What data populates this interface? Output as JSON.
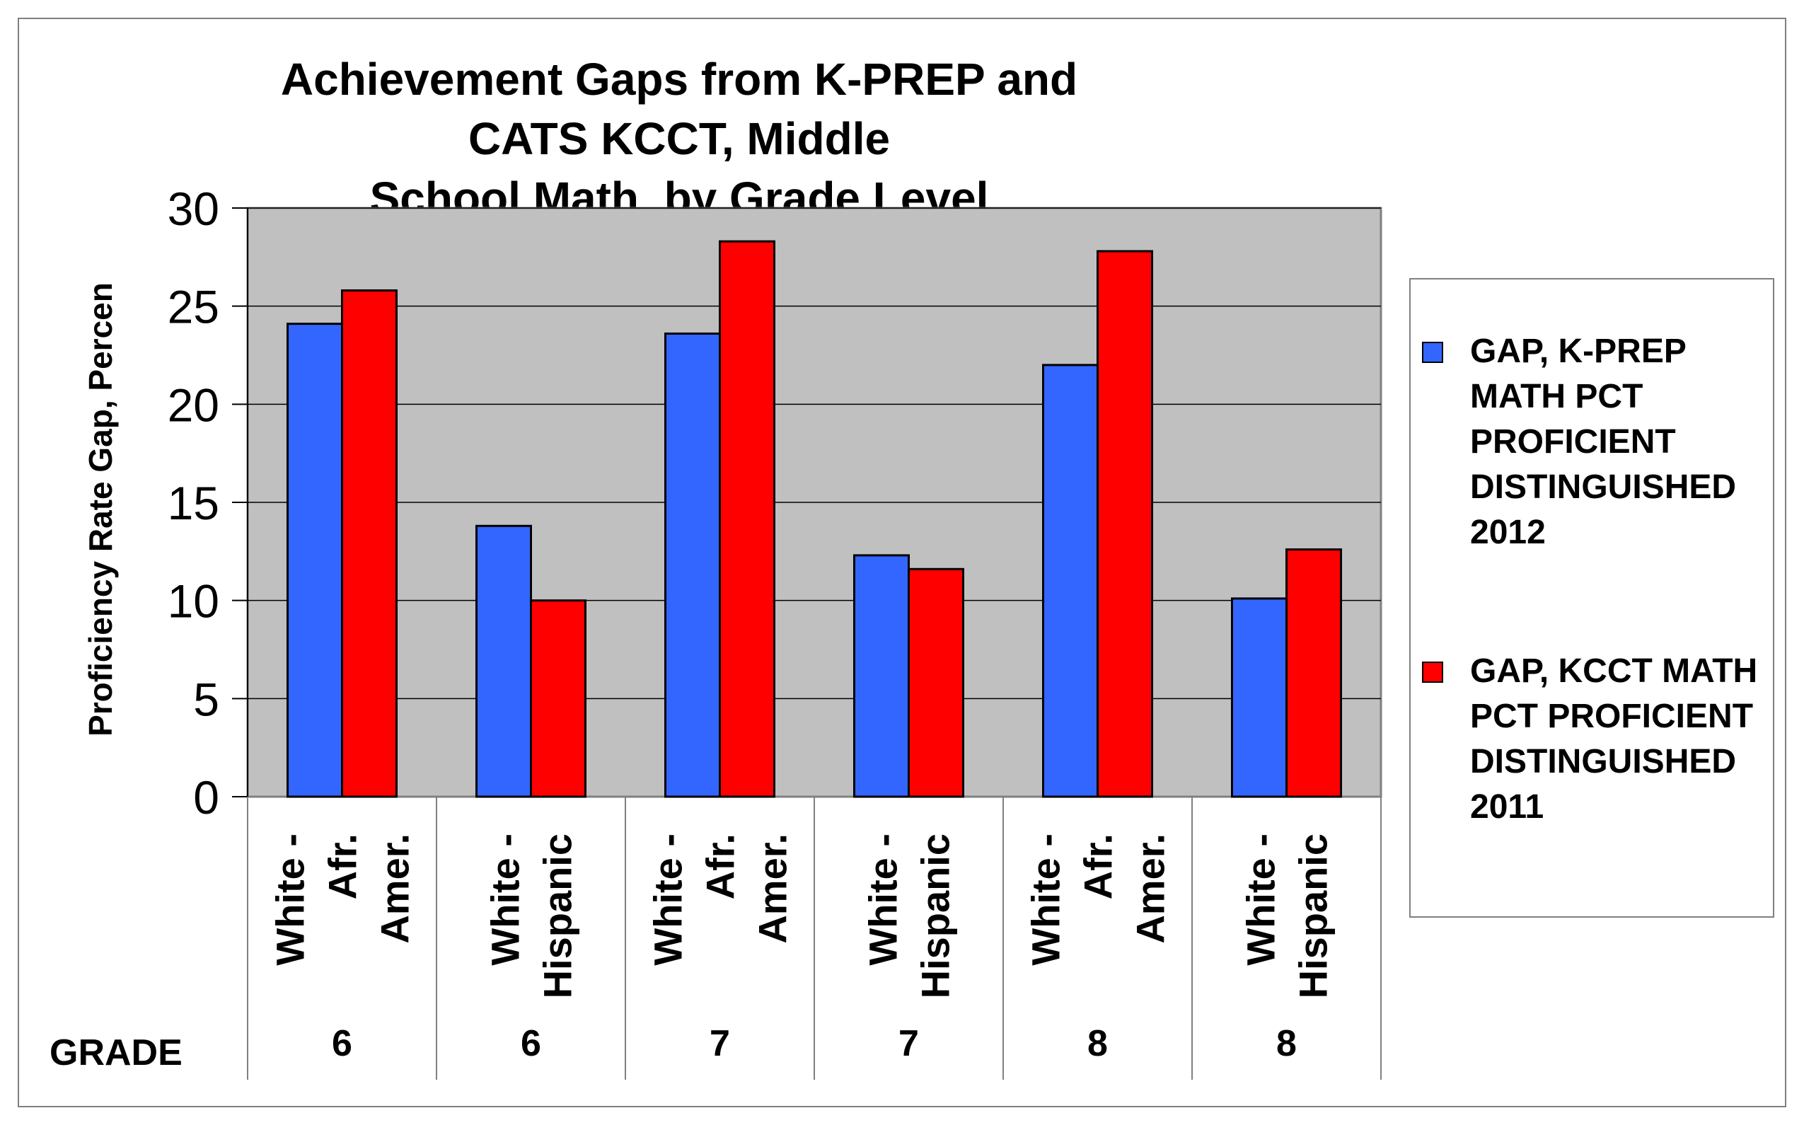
{
  "chart_data": {
    "type": "bar",
    "title": "Achievement Gaps from K-PREP and CATS KCCT,  Middle School Math, by Grade Level",
    "title_lines": [
      "Achievement Gaps from K-PREP and CATS KCCT,  Middle",
      "School Math, by Grade Level"
    ],
    "ylabel": "Proficiency Rate Gap, Percen",
    "xlabel": "GRADE",
    "ylim": [
      0,
      30
    ],
    "yticks": [
      0,
      5,
      10,
      15,
      20,
      25,
      30
    ],
    "grid": true,
    "legend_position": "right",
    "categories": [
      {
        "group": [
          "White -",
          "Afr.",
          "Amer."
        ],
        "grade": "6"
      },
      {
        "group": [
          "White -",
          "Hispanic"
        ],
        "grade": "6"
      },
      {
        "group": [
          "White -",
          "Afr.",
          "Amer."
        ],
        "grade": "7"
      },
      {
        "group": [
          "White -",
          "Hispanic"
        ],
        "grade": "7"
      },
      {
        "group": [
          "White -",
          "Afr.",
          "Amer."
        ],
        "grade": "8"
      },
      {
        "group": [
          "White -",
          "Hispanic"
        ],
        "grade": "8"
      }
    ],
    "series": [
      {
        "name": "GAP, K-PREP MATH PCT PROFICIENT DISTINGUISHED 2012",
        "name_lines": [
          "GAP, K-PREP",
          "MATH PCT",
          "PROFICIENT",
          "DISTINGUISHED",
          "2012"
        ],
        "color": "#3366FF",
        "values": [
          24.1,
          13.8,
          23.6,
          12.3,
          22.0,
          10.1
        ]
      },
      {
        "name": "GAP, KCCT MATH PCT PROFICIENT DISTINGUISHED 2011",
        "name_lines": [
          "GAP, KCCT MATH",
          "PCT PROFICIENT",
          "DISTINGUISHED",
          "2011"
        ],
        "color": "#FF0000",
        "values": [
          25.8,
          10.0,
          28.3,
          11.6,
          27.8,
          12.6
        ]
      }
    ],
    "colors": {
      "plot_bg": "#C0C0C0",
      "gridline": "#000000",
      "frame": "#808080"
    }
  }
}
